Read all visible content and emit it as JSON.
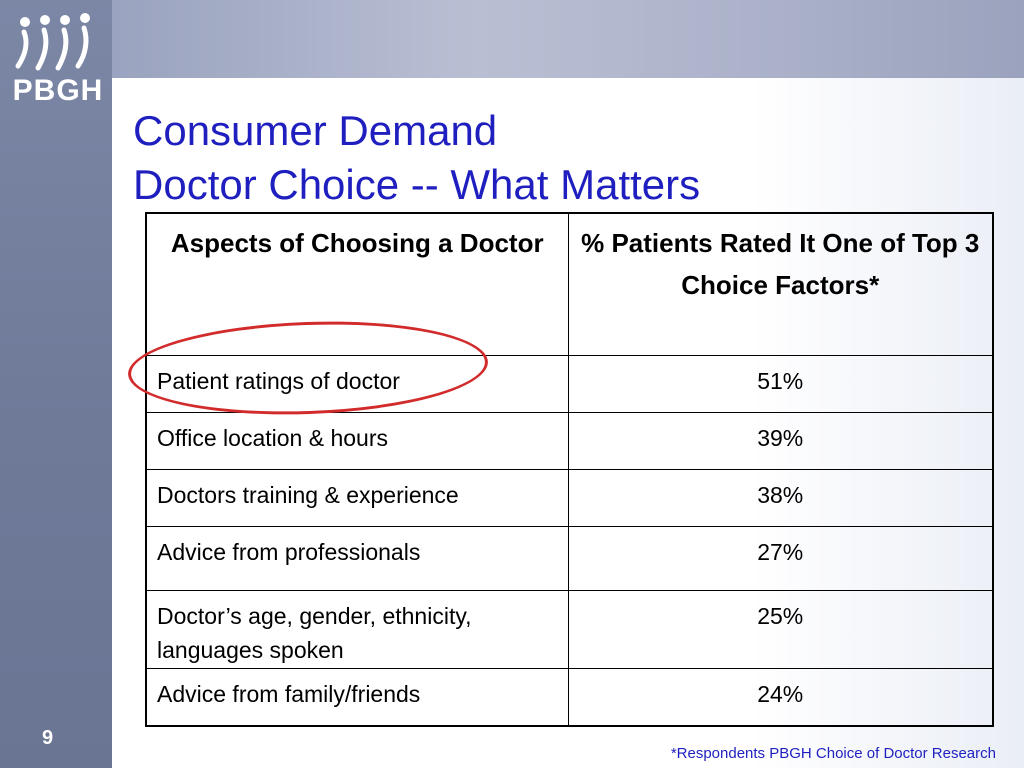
{
  "logo": {
    "text": "PBGH",
    "icon": "people-figures-icon"
  },
  "title": {
    "line1": "Consumer Demand",
    "line2": "Doctor Choice -- What Matters"
  },
  "table": {
    "headers": [
      "Aspects of Choosing a Doctor",
      "% Patients Rated It One of Top 3 Choice Factors*"
    ],
    "rows": [
      {
        "aspect": "Patient ratings of doctor",
        "value": "51%"
      },
      {
        "aspect": "Office location & hours",
        "value": "39%"
      },
      {
        "aspect": "Doctors training & experience",
        "value": "38%"
      },
      {
        "aspect": "Advice from professionals",
        "value": "27%"
      },
      {
        "aspect": "Doctor’s age, gender, ethnicity, languages spoken",
        "value": "25%"
      },
      {
        "aspect": "Advice from family/friends",
        "value": "24%"
      }
    ]
  },
  "slide": {
    "page_number": "9"
  },
  "footnote": "*Respondents PBGH Choice of Doctor Research",
  "colors": {
    "title": "#1f1fc0",
    "annotation": "#d22b2b",
    "sidebar": "#6f7a99"
  }
}
